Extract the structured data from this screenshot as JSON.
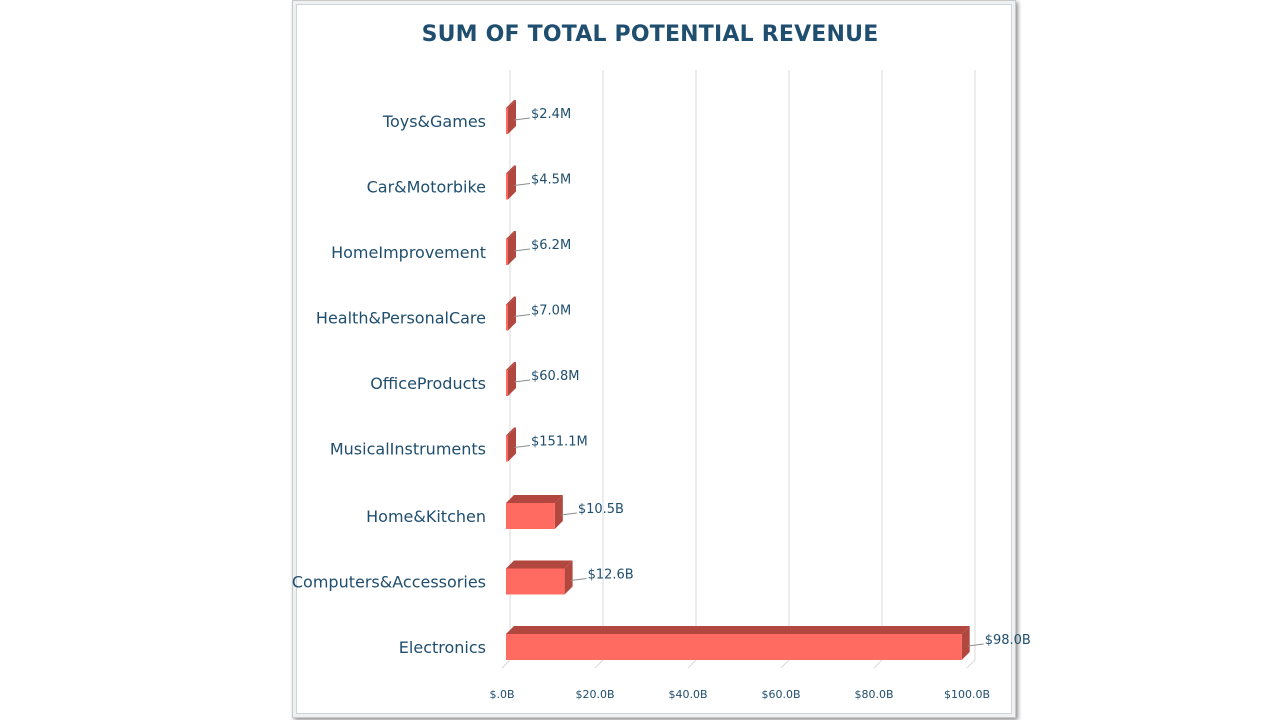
{
  "chart_data": {
    "type": "bar",
    "orientation": "horizontal",
    "three_d": true,
    "title": "SUM OF TOTAL POTENTIAL REVENUE",
    "categories": [
      "Toys&Games",
      "Car&Motorbike",
      "HomeImprovement",
      "Health&PersonalCare",
      "OfficeProducts",
      "MusicalInstruments",
      "Home&Kitchen",
      "Computers&Accessories",
      "Electronics"
    ],
    "values": [
      2400000,
      4500000,
      6200000,
      7000000,
      60800000,
      151100000,
      10500000000,
      12600000000,
      98000000000
    ],
    "data_labels": [
      "$2.4M",
      "$4.5M",
      "$6.2M",
      "$7.0M",
      "$60.8M",
      "$151.1M",
      "$10.5B",
      "$12.6B",
      "$98.0B"
    ],
    "x_ticks": [
      "$.0B",
      "$20.0B",
      "$40.0B",
      "$60.0B",
      "$80.0B",
      "$100.0B"
    ],
    "xlim": [
      0,
      100000000000
    ],
    "grid": true,
    "legend": "none",
    "colors": {
      "bar_front": "#ff6b61",
      "bar_side": "#b2473f",
      "title": "#1f4e6e",
      "grid": "#d9d9d9"
    }
  }
}
